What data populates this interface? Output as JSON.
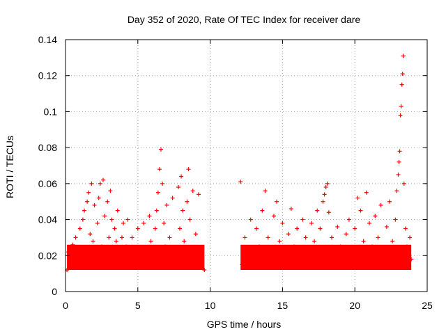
{
  "chart_data": {
    "type": "scatter",
    "title": "Day 352 of 2020, Rate Of TEC Index for receiver dare",
    "xlabel": "GPS time / hours",
    "ylabel": "ROTI / TECUs",
    "xlim": [
      0,
      25
    ],
    "ylim": [
      0,
      0.14
    ],
    "x_ticks": [
      "0",
      "5",
      "10",
      "15",
      "20",
      "25"
    ],
    "y_ticks": [
      "0",
      "0.02",
      "0.04",
      "0.06",
      "0.08",
      "0.1",
      "0.12",
      "0.14"
    ],
    "grid": true,
    "marker": "+",
    "color": "#ff0000",
    "series": [
      {
        "points": [
          [
            0.1,
            0.012
          ],
          [
            0.2,
            0.022
          ],
          [
            0.4,
            0.018
          ],
          [
            0.5,
            0.026
          ],
          [
            0.7,
            0.03
          ],
          [
            0.8,
            0.015
          ],
          [
            1.0,
            0.035
          ],
          [
            1.1,
            0.024
          ],
          [
            1.2,
            0.04
          ],
          [
            1.3,
            0.045
          ],
          [
            1.4,
            0.02
          ],
          [
            1.5,
            0.05
          ],
          [
            1.6,
            0.055
          ],
          [
            1.7,
            0.032
          ],
          [
            1.8,
            0.06
          ],
          [
            1.9,
            0.028
          ],
          [
            2.0,
            0.048
          ],
          [
            2.1,
            0.018
          ],
          [
            2.2,
            0.038
          ],
          [
            2.3,
            0.052
          ],
          [
            2.4,
            0.06
          ],
          [
            2.5,
            0.025
          ],
          [
            2.6,
            0.062
          ],
          [
            2.7,
            0.042
          ],
          [
            2.8,
            0.02
          ],
          [
            2.9,
            0.05
          ],
          [
            3.0,
            0.03
          ],
          [
            3.1,
            0.056
          ],
          [
            3.2,
            0.04
          ],
          [
            3.3,
            0.022
          ],
          [
            3.4,
            0.035
          ],
          [
            3.5,
            0.028
          ],
          [
            3.6,
            0.045
          ],
          [
            3.8,
            0.018
          ],
          [
            3.9,
            0.03
          ],
          [
            4.0,
            0.038
          ],
          [
            4.2,
            0.025
          ],
          [
            4.3,
            0.04
          ],
          [
            4.4,
            0.016
          ],
          [
            4.6,
            0.03
          ],
          [
            4.8,
            0.02
          ],
          [
            5.0,
            0.035
          ],
          [
            5.2,
            0.022
          ],
          [
            5.4,
            0.038
          ],
          [
            5.6,
            0.018
          ],
          [
            5.8,
            0.042
          ],
          [
            5.9,
            0.028
          ],
          [
            6.0,
            0.02
          ],
          [
            6.2,
            0.035
          ],
          [
            6.3,
            0.045
          ],
          [
            6.4,
            0.055
          ],
          [
            6.5,
            0.068
          ],
          [
            6.6,
            0.079
          ],
          [
            6.7,
            0.06
          ],
          [
            6.8,
            0.038
          ],
          [
            6.9,
            0.025
          ],
          [
            7.0,
            0.048
          ],
          [
            7.2,
            0.03
          ],
          [
            7.4,
            0.052
          ],
          [
            7.6,
            0.02
          ],
          [
            7.8,
            0.058
          ],
          [
            7.9,
            0.035
          ],
          [
            8.0,
            0.064
          ],
          [
            8.1,
            0.045
          ],
          [
            8.2,
            0.028
          ],
          [
            8.4,
            0.05
          ],
          [
            8.5,
            0.068
          ],
          [
            8.6,
            0.04
          ],
          [
            8.8,
            0.056
          ],
          [
            9.0,
            0.032
          ],
          [
            9.2,
            0.054
          ],
          [
            9.4,
            0.024
          ],
          [
            9.6,
            0.012
          ],
          [
            12.1,
            0.061
          ],
          [
            12.2,
            0.015
          ],
          [
            12.4,
            0.03
          ],
          [
            12.6,
            0.022
          ],
          [
            12.8,
            0.04
          ],
          [
            13.0,
            0.018
          ],
          [
            13.2,
            0.035
          ],
          [
            13.4,
            0.025
          ],
          [
            13.6,
            0.045
          ],
          [
            13.8,
            0.056
          ],
          [
            14.0,
            0.03
          ],
          [
            14.2,
            0.02
          ],
          [
            14.4,
            0.042
          ],
          [
            14.6,
            0.05
          ],
          [
            14.8,
            0.028
          ],
          [
            15.0,
            0.038
          ],
          [
            15.2,
            0.018
          ],
          [
            15.4,
            0.032
          ],
          [
            15.6,
            0.046
          ],
          [
            15.8,
            0.025
          ],
          [
            16.0,
            0.035
          ],
          [
            16.2,
            0.02
          ],
          [
            16.4,
            0.04
          ],
          [
            16.6,
            0.03
          ],
          [
            16.8,
            0.022
          ],
          [
            17.0,
            0.038
          ],
          [
            17.2,
            0.028
          ],
          [
            17.4,
            0.045
          ],
          [
            17.6,
            0.035
          ],
          [
            17.8,
            0.05
          ],
          [
            17.9,
            0.054
          ],
          [
            18.0,
            0.058
          ],
          [
            18.1,
            0.06
          ],
          [
            18.2,
            0.044
          ],
          [
            18.4,
            0.03
          ],
          [
            18.6,
            0.02
          ],
          [
            18.8,
            0.036
          ],
          [
            19.0,
            0.025
          ],
          [
            19.2,
            0.018
          ],
          [
            19.4,
            0.032
          ],
          [
            19.6,
            0.04
          ],
          [
            19.8,
            0.022
          ],
          [
            20.0,
            0.035
          ],
          [
            20.2,
            0.052
          ],
          [
            20.4,
            0.045
          ],
          [
            20.6,
            0.028
          ],
          [
            20.8,
            0.055
          ],
          [
            21.0,
            0.038
          ],
          [
            21.2,
            0.025
          ],
          [
            21.4,
            0.042
          ],
          [
            21.6,
            0.03
          ],
          [
            21.8,
            0.048
          ],
          [
            22.0,
            0.02
          ],
          [
            22.2,
            0.036
          ],
          [
            22.4,
            0.05
          ],
          [
            22.6,
            0.028
          ],
          [
            22.8,
            0.04
          ],
          [
            22.9,
            0.056
          ],
          [
            23.0,
            0.065
          ],
          [
            23.05,
            0.072
          ],
          [
            23.1,
            0.078
          ],
          [
            23.15,
            0.098
          ],
          [
            23.2,
            0.103
          ],
          [
            23.25,
            0.115
          ],
          [
            23.3,
            0.121
          ],
          [
            23.35,
            0.131
          ],
          [
            23.4,
            0.06
          ],
          [
            23.5,
            0.035
          ],
          [
            23.6,
            0.025
          ],
          [
            23.8,
            0.03
          ],
          [
            23.9,
            0.018
          ]
        ]
      }
    ]
  }
}
